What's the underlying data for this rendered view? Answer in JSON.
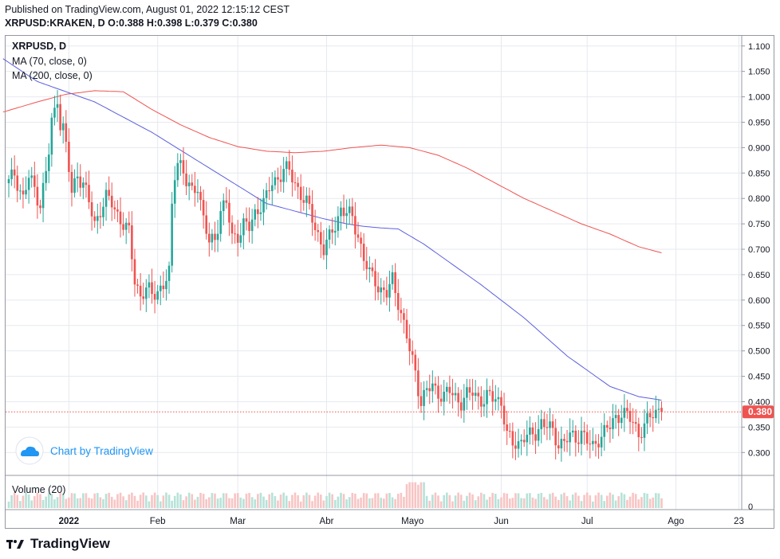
{
  "header": {
    "published": "Published on TradingView.com, August 01, 2022 12:15:12 CEST",
    "ohlc": "XRPUSD:KRAKEN, D  O:0.388  H:0.398  L:0.379  C:0.380"
  },
  "legend": {
    "symbol": "XRPUSD, D",
    "ma70": "MA (70, close, 0)",
    "ma200": "MA (200, close, 0)",
    "volume": "Volume (20)"
  },
  "watermark": "Chart by TradingView",
  "footer_brand": "TradingView",
  "colors": {
    "up": "#26a69a",
    "down": "#ef5350",
    "ma70": "#5b5fde",
    "ma200": "#ef5350",
    "price_line": "#ef5350",
    "grid": "#e6e9ef",
    "axis_text": "#131722",
    "vol_up": "#b7e2d8",
    "vol_down": "#f7c5c4",
    "watermark": "#2196f3"
  },
  "chart_data": {
    "type": "candlestick",
    "y_range": [
      0.255,
      1.12
    ],
    "y_ticks": [
      0.3,
      0.35,
      0.4,
      0.45,
      0.5,
      0.55,
      0.6,
      0.65,
      0.7,
      0.75,
      0.8,
      0.85,
      0.9,
      0.95,
      1.0,
      1.05,
      1.1
    ],
    "y_tick_labels": [
      "0.300",
      "0.350",
      "0.400",
      "0.450",
      "0.500",
      "0.550",
      "0.600",
      "0.650",
      "0.700",
      "0.750",
      "0.800",
      "0.850",
      "0.900",
      "0.950",
      "1.000",
      "1.050",
      "1.100"
    ],
    "x_labels": [
      {
        "label": "2022",
        "day": 21
      },
      {
        "label": "Feb",
        "day": 52
      },
      {
        "label": "Mar",
        "day": 80
      },
      {
        "label": "Abr",
        "day": 111
      },
      {
        "label": "Mayo",
        "day": 141
      },
      {
        "label": "Jun",
        "day": 172
      },
      {
        "label": "Jul",
        "day": 202
      },
      {
        "label": "Ago",
        "day": 233
      },
      {
        "label": "23",
        "day": 255
      }
    ],
    "last_price": 0.38,
    "last_price_label": "0.380",
    "close_anchors": [
      [
        0,
        0.83
      ],
      [
        2,
        0.85
      ],
      [
        5,
        0.8
      ],
      [
        7,
        0.84
      ],
      [
        9,
        0.82
      ],
      [
        11,
        0.79
      ],
      [
        13,
        0.85
      ],
      [
        14,
        0.89
      ],
      [
        15,
        0.95
      ],
      [
        16,
        0.97
      ],
      [
        17,
        1.0
      ],
      [
        18,
        0.95
      ],
      [
        19,
        0.94
      ],
      [
        20,
        0.9
      ],
      [
        22,
        0.81
      ],
      [
        24,
        0.85
      ],
      [
        26,
        0.83
      ],
      [
        28,
        0.79
      ],
      [
        30,
        0.75
      ],
      [
        32,
        0.78
      ],
      [
        34,
        0.8
      ],
      [
        36,
        0.79
      ],
      [
        38,
        0.77
      ],
      [
        40,
        0.75
      ],
      [
        42,
        0.73
      ],
      [
        44,
        0.64
      ],
      [
        46,
        0.61
      ],
      [
        48,
        0.62
      ],
      [
        50,
        0.61
      ],
      [
        52,
        0.62
      ],
      [
        54,
        0.63
      ],
      [
        56,
        0.65
      ],
      [
        57,
        0.78
      ],
      [
        58,
        0.85
      ],
      [
        59,
        0.88
      ],
      [
        60,
        0.87
      ],
      [
        62,
        0.83
      ],
      [
        64,
        0.81
      ],
      [
        66,
        0.83
      ],
      [
        68,
        0.76
      ],
      [
        70,
        0.71
      ],
      [
        72,
        0.72
      ],
      [
        74,
        0.78
      ],
      [
        76,
        0.79
      ],
      [
        78,
        0.72
      ],
      [
        80,
        0.73
      ],
      [
        82,
        0.75
      ],
      [
        84,
        0.74
      ],
      [
        86,
        0.77
      ],
      [
        88,
        0.79
      ],
      [
        90,
        0.8
      ],
      [
        92,
        0.83
      ],
      [
        94,
        0.84
      ],
      [
        96,
        0.86
      ],
      [
        98,
        0.85
      ],
      [
        100,
        0.83
      ],
      [
        102,
        0.81
      ],
      [
        104,
        0.79
      ],
      [
        106,
        0.76
      ],
      [
        108,
        0.73
      ],
      [
        110,
        0.7
      ],
      [
        112,
        0.72
      ],
      [
        114,
        0.75
      ],
      [
        116,
        0.78
      ],
      [
        118,
        0.77
      ],
      [
        120,
        0.76
      ],
      [
        122,
        0.73
      ],
      [
        124,
        0.68
      ],
      [
        126,
        0.65
      ],
      [
        128,
        0.64
      ],
      [
        130,
        0.62
      ],
      [
        132,
        0.61
      ],
      [
        134,
        0.64
      ],
      [
        136,
        0.6
      ],
      [
        138,
        0.55
      ],
      [
        140,
        0.5
      ],
      [
        142,
        0.46
      ],
      [
        144,
        0.4
      ],
      [
        146,
        0.42
      ],
      [
        148,
        0.43
      ],
      [
        150,
        0.42
      ],
      [
        152,
        0.41
      ],
      [
        154,
        0.42
      ],
      [
        156,
        0.41
      ],
      [
        158,
        0.4
      ],
      [
        160,
        0.41
      ],
      [
        162,
        0.42
      ],
      [
        164,
        0.41
      ],
      [
        166,
        0.4
      ],
      [
        168,
        0.41
      ],
      [
        170,
        0.41
      ],
      [
        172,
        0.4
      ],
      [
        174,
        0.33
      ],
      [
        176,
        0.32
      ],
      [
        178,
        0.32
      ],
      [
        180,
        0.33
      ],
      [
        182,
        0.33
      ],
      [
        184,
        0.34
      ],
      [
        186,
        0.36
      ],
      [
        188,
        0.35
      ],
      [
        190,
        0.34
      ],
      [
        192,
        0.32
      ],
      [
        194,
        0.32
      ],
      [
        196,
        0.33
      ],
      [
        198,
        0.33
      ],
      [
        200,
        0.34
      ],
      [
        202,
        0.32
      ],
      [
        204,
        0.31
      ],
      [
        206,
        0.33
      ],
      [
        208,
        0.34
      ],
      [
        210,
        0.35
      ],
      [
        212,
        0.37
      ],
      [
        214,
        0.38
      ],
      [
        216,
        0.37
      ],
      [
        218,
        0.36
      ],
      [
        220,
        0.34
      ],
      [
        222,
        0.35
      ],
      [
        224,
        0.37
      ],
      [
        226,
        0.38
      ],
      [
        227,
        0.388
      ],
      [
        228,
        0.38
      ]
    ],
    "ma70_anchors": [
      [
        -2,
        1.075
      ],
      [
        10,
        1.03
      ],
      [
        30,
        0.99
      ],
      [
        50,
        0.93
      ],
      [
        70,
        0.86
      ],
      [
        90,
        0.79
      ],
      [
        100,
        0.775
      ],
      [
        110,
        0.76
      ],
      [
        118,
        0.75
      ],
      [
        124,
        0.745
      ],
      [
        130,
        0.742
      ],
      [
        136,
        0.74
      ],
      [
        145,
        0.71
      ],
      [
        155,
        0.67
      ],
      [
        165,
        0.63
      ],
      [
        180,
        0.565
      ],
      [
        195,
        0.49
      ],
      [
        210,
        0.43
      ],
      [
        220,
        0.41
      ],
      [
        228,
        0.403
      ]
    ],
    "ma200_anchors": [
      [
        -2,
        0.97
      ],
      [
        10,
        0.99
      ],
      [
        20,
        1.005
      ],
      [
        30,
        1.012
      ],
      [
        40,
        1.01
      ],
      [
        50,
        0.975
      ],
      [
        60,
        0.945
      ],
      [
        70,
        0.92
      ],
      [
        80,
        0.902
      ],
      [
        90,
        0.893
      ],
      [
        100,
        0.89
      ],
      [
        110,
        0.893
      ],
      [
        120,
        0.9
      ],
      [
        130,
        0.905
      ],
      [
        140,
        0.9
      ],
      [
        150,
        0.885
      ],
      [
        160,
        0.86
      ],
      [
        170,
        0.83
      ],
      [
        180,
        0.8
      ],
      [
        190,
        0.775
      ],
      [
        200,
        0.75
      ],
      [
        210,
        0.73
      ],
      [
        220,
        0.705
      ],
      [
        228,
        0.693
      ]
    ]
  }
}
